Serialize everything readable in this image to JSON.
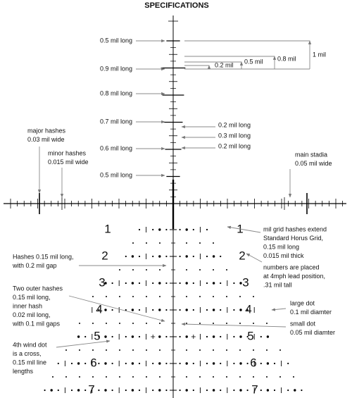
{
  "title": "SPECIFICATIONS",
  "hash_labels": [
    "0.5 mil long",
    "0.9 mil long",
    "0.8 mil long",
    "0.7 mil long",
    "0.6 mil long",
    "0.5 mil long"
  ],
  "subtension_labels": [
    "0.2 mil",
    "0.5 mil",
    "0.8 mil",
    "1 mil"
  ],
  "small_hash_labels": [
    "0.2 mil long",
    "0.3 mil long",
    "0.2 mil long"
  ],
  "notes": [
    {
      "lines": [
        "major hashes",
        "0.03 mil wide"
      ]
    },
    {
      "lines": [
        "minor hashes",
        "0.015 mil wide"
      ]
    },
    {
      "lines": [
        "main stadia",
        "0.05 mil wide"
      ]
    },
    {
      "lines": [
        "mil grid hashes extend",
        "Standard Horus Grid,",
        "0.15 mil long",
        "0.015 mil thick"
      ]
    },
    {
      "lines": [
        "Hashes 0.15 mil long,",
        "with 0.2 mil gap"
      ]
    },
    {
      "lines": [
        "numbers are placed",
        "at 4mph lead position,",
        ".31 mil tall"
      ]
    },
    {
      "lines": [
        "Two outer hashes",
        "0.15 mil long,",
        "inner hash",
        "0.02 mil long,",
        "with 0.1 mil gaps"
      ]
    },
    {
      "lines": [
        "large dot",
        "0.1 mil diamter"
      ]
    },
    {
      "lines": [
        "small dot",
        "0.05 mil diamter"
      ]
    },
    {
      "lines": [
        "4th wind dot",
        "is a cross,",
        "0.15 mil line",
        "lengths"
      ]
    }
  ],
  "row_numbers": [
    "1",
    "2",
    "3",
    "4",
    "5",
    "6",
    "7"
  ]
}
